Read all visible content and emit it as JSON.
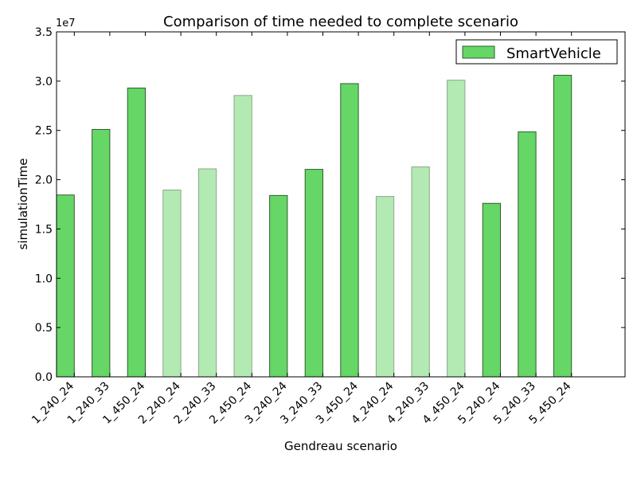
{
  "chart_data": {
    "type": "bar",
    "title": "Comparison of time needed to complete scenario",
    "xlabel": "Gendreau scenario",
    "ylabel": "simulationTime",
    "y_offset_label": "1e7",
    "y_scale": 10000000,
    "ylim": [
      0,
      35000000
    ],
    "yticks": [
      0,
      5000000,
      10000000,
      15000000,
      20000000,
      25000000,
      30000000,
      35000000
    ],
    "ytick_labels": [
      "0.0",
      "0.5",
      "1.0",
      "1.5",
      "2.0",
      "2.5",
      "3.0",
      "3.5"
    ],
    "grid": false,
    "legend": {
      "position": "top-right",
      "entries": [
        "SmartVehicle"
      ]
    },
    "categories": [
      "1_240_24",
      "1_240_33",
      "1_450_24",
      "2_240_24",
      "2_240_33",
      "2_450_24",
      "3_240_24",
      "3_240_33",
      "3_450_24",
      "4_240_24",
      "4_240_33",
      "4_450_24",
      "5_240_24",
      "5_240_33",
      "5_450_24"
    ],
    "series": [
      {
        "name": "SmartVehicle",
        "values": [
          18450000,
          25100000,
          29300000,
          18950000,
          21100000,
          28550000,
          18400000,
          21050000,
          29750000,
          18300000,
          21300000,
          30100000,
          17600000,
          24850000,
          30600000
        ],
        "highlight": [
          true,
          true,
          true,
          false,
          false,
          false,
          true,
          true,
          true,
          false,
          false,
          false,
          true,
          true,
          true
        ]
      }
    ],
    "colors": {
      "bar": "#66d666",
      "bar_edge": "#2f5e2f",
      "bar_light": "#b3e9b3",
      "bar_light_edge": "#8aa88a",
      "axis": "#000000"
    }
  }
}
